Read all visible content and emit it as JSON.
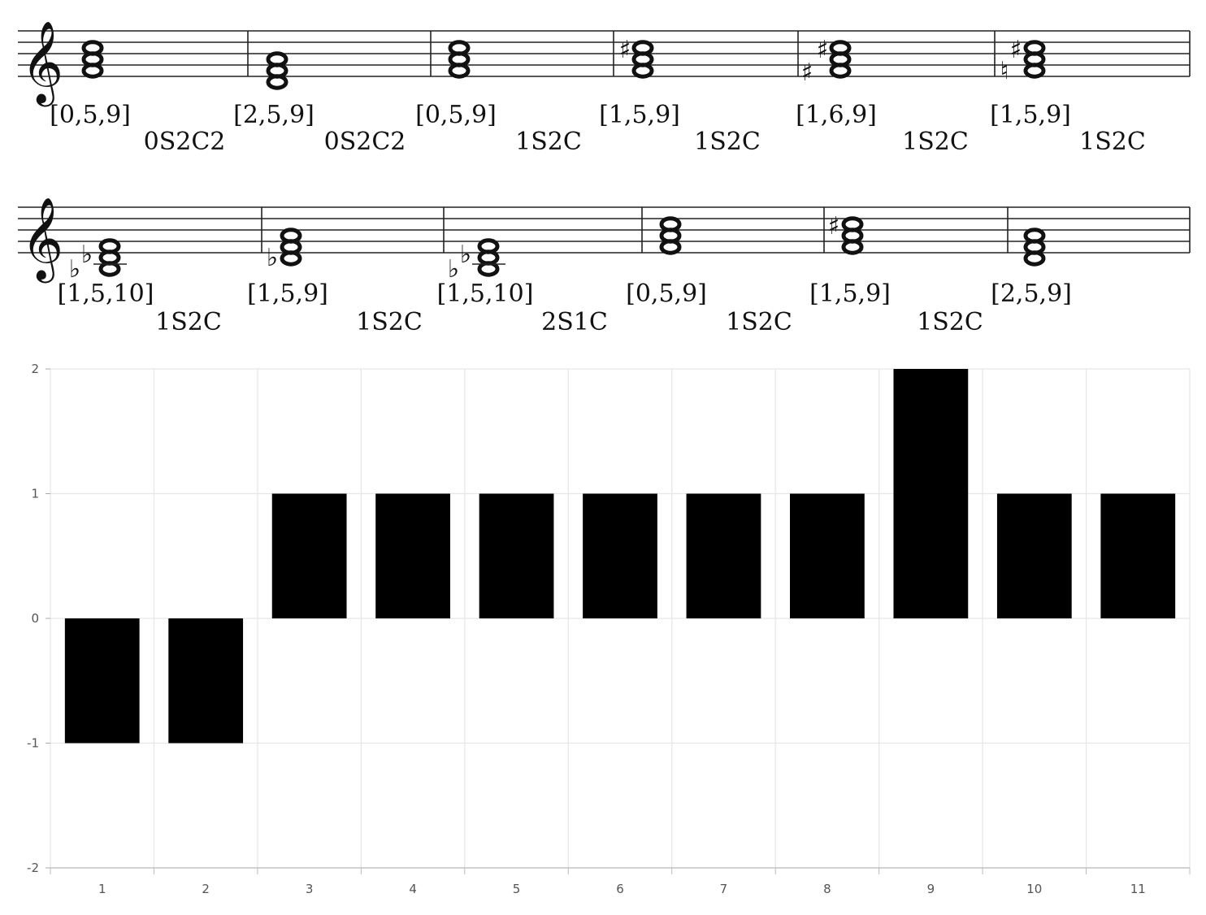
{
  "score": {
    "row1": {
      "sets": [
        "[0,5,9]",
        "[2,5,9]",
        "[0,5,9]",
        "[1,5,9]",
        "[1,6,9]",
        "[1,5,9]"
      ],
      "transitions": [
        "0S2C2",
        "0S2C2",
        "1S2C",
        "1S2C",
        "1S2C",
        "1S2C"
      ]
    },
    "row2": {
      "sets": [
        "[1,5,10]",
        "[1,5,9]",
        "[1,5,10]",
        "[0,5,9]",
        "[1,5,9]",
        "[2,5,9]"
      ],
      "transitions": [
        "1S2C",
        "1S2C",
        "2S1C",
        "1S2C",
        "1S2C"
      ]
    },
    "icons": [
      "treble-clef",
      "whole-note-chord",
      "sharp",
      "flat",
      "natural"
    ]
  },
  "chart_data": {
    "type": "bar",
    "categories": [
      "1",
      "2",
      "3",
      "4",
      "5",
      "6",
      "7",
      "8",
      "9",
      "10",
      "11"
    ],
    "values": [
      -1,
      -1,
      1,
      1,
      1,
      1,
      1,
      1,
      2,
      1,
      1
    ],
    "ylim": [
      -2,
      2
    ],
    "yticks": [
      "-2",
      "-1",
      "0",
      "1",
      "2"
    ],
    "grid": true,
    "bar_color": "#000000",
    "grid_color": "#e6e6e6"
  }
}
